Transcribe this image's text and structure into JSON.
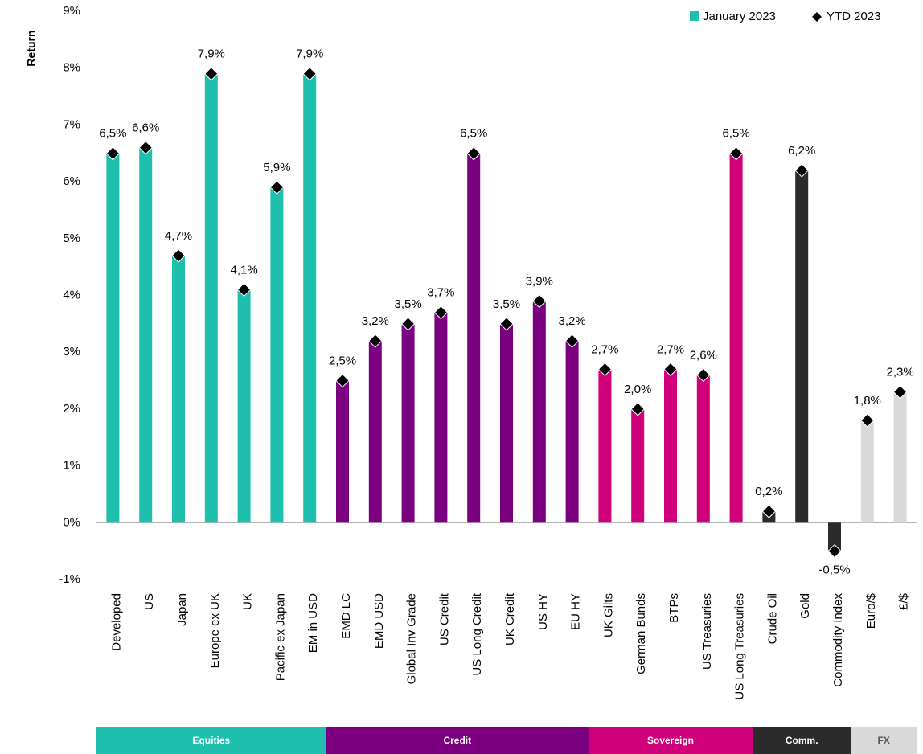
{
  "chart_data": {
    "type": "bar",
    "y_label": "Return",
    "categories": [
      "Developed",
      "US",
      "Japan",
      "Europe ex UK",
      "UK",
      "Pacific ex Japan",
      "EM in USD",
      "EMD LC",
      "EMD USD",
      "Global Inv Grade",
      "US Credit",
      "US Long Credit",
      "UK Credit",
      "US HY",
      "EU HY",
      "UK Gilts",
      "German Bunds",
      "BTPs",
      "US Treasuries",
      "US Long Treasuries",
      "Crude Oil",
      "Gold",
      "Commodity Index",
      "Euro/$",
      "£/$"
    ],
    "series": [
      {
        "name": "January 2023",
        "color": "#1fbfad",
        "values": [
          6.5,
          6.6,
          4.7,
          7.9,
          4.1,
          5.9,
          7.9,
          2.5,
          3.2,
          3.5,
          3.7,
          6.5,
          3.5,
          3.9,
          3.2,
          2.7,
          2.0,
          2.7,
          2.6,
          6.5,
          0.2,
          6.2,
          -0.5,
          1.8,
          2.3
        ],
        "value_labels": [
          "6,5%",
          "6,6%",
          "4,7%",
          "7,9%",
          "4,1%",
          "5,9%",
          "7,9%",
          "2,5%",
          "3,2%",
          "3,5%",
          "3,7%",
          "6,5%",
          "3,5%",
          "3,9%",
          "3,2%",
          "2,7%",
          "2,0%",
          "2,7%",
          "2,6%",
          "6,5%",
          "0,2%",
          "6,2%",
          "-0,5%",
          "1,8%",
          "2,3%"
        ]
      },
      {
        "name": "YTD 2023",
        "color": "#000000",
        "values": [
          6.5,
          6.6,
          4.7,
          7.9,
          4.1,
          5.9,
          7.9,
          2.5,
          3.2,
          3.5,
          3.7,
          6.5,
          3.5,
          3.9,
          3.2,
          2.7,
          2.0,
          2.7,
          2.6,
          6.5,
          0.2,
          6.2,
          -0.5,
          1.8,
          2.3
        ]
      }
    ],
    "groups": [
      {
        "label": "Equities",
        "count": 7,
        "color": "#1fbfad"
      },
      {
        "label": "Credit",
        "count": 8,
        "color": "#7b0080"
      },
      {
        "label": "Sovereign",
        "count": 5,
        "color": "#d0007a"
      },
      {
        "label": "Comm.",
        "count": 3,
        "color": "#2b2b2b"
      },
      {
        "label": "FX",
        "count": 2,
        "color": "#d9d9d9"
      }
    ],
    "ylim": [
      -1,
      9
    ],
    "yticks": [
      {
        "value": -1,
        "label": "-1%"
      },
      {
        "value": 0,
        "label": "0%"
      },
      {
        "value": 1,
        "label": "1%"
      },
      {
        "value": 2,
        "label": "2%"
      },
      {
        "value": 3,
        "label": "3%"
      },
      {
        "value": 4,
        "label": "4%"
      },
      {
        "value": 5,
        "label": "5%"
      },
      {
        "value": 6,
        "label": "6%"
      },
      {
        "value": 7,
        "label": "7%"
      },
      {
        "value": 8,
        "label": "8%"
      },
      {
        "value": 9,
        "label": "9%"
      }
    ],
    "legend": "top-right"
  }
}
